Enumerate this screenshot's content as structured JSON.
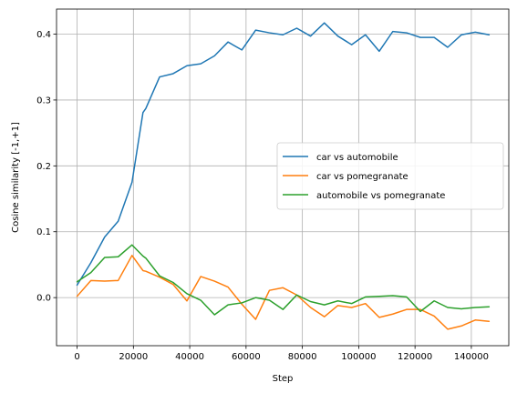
{
  "chart_data": {
    "type": "line",
    "title": "",
    "xlabel": "Step",
    "ylabel": "Cosine similarity [-1,+1]",
    "xlim": [
      -7300,
      153300
    ],
    "ylim": [
      -0.073,
      0.438
    ],
    "xticks": [
      0,
      20000,
      40000,
      60000,
      80000,
      100000,
      120000,
      140000
    ],
    "xtick_labels": [
      "0",
      "20000",
      "40000",
      "60000",
      "80000",
      "100000",
      "120000",
      "140000"
    ],
    "yticks": [
      0.0,
      0.1,
      0.2,
      0.3,
      0.4
    ],
    "ytick_labels": [
      "0.0",
      "0.1",
      "0.2",
      "0.3",
      "0.4"
    ],
    "grid": true,
    "legend_position": "center-right",
    "x": [
      0,
      4900,
      9800,
      14600,
      19500,
      23400,
      24400,
      29300,
      34100,
      39000,
      43900,
      48800,
      53600,
      58500,
      63400,
      68300,
      73100,
      78000,
      82900,
      87800,
      92600,
      97500,
      102400,
      107300,
      112100,
      117000,
      121900,
      126800,
      131600,
      136500,
      141400,
      146300
    ],
    "series": [
      {
        "name": "car vs automobile",
        "color": "#1f77b4",
        "values": [
          0.019,
          0.053,
          0.092,
          0.116,
          0.175,
          0.281,
          0.287,
          0.335,
          0.34,
          0.352,
          0.355,
          0.367,
          0.388,
          0.376,
          0.406,
          0.402,
          0.399,
          0.409,
          0.397,
          0.417,
          0.397,
          0.384,
          0.399,
          0.374,
          0.404,
          0.402,
          0.395,
          0.395,
          0.38,
          0.399,
          0.403,
          0.399
        ]
      },
      {
        "name": "car vs pomegranate",
        "color": "#ff7f0e",
        "values": [
          0.002,
          0.026,
          0.025,
          0.026,
          0.064,
          0.041,
          0.04,
          0.031,
          0.02,
          -0.005,
          0.032,
          0.025,
          0.016,
          -0.01,
          -0.033,
          0.011,
          0.015,
          0.004,
          -0.015,
          -0.029,
          -0.012,
          -0.015,
          -0.009,
          -0.03,
          -0.025,
          -0.018,
          -0.018,
          -0.028,
          -0.048,
          -0.043,
          -0.034,
          -0.036
        ]
      },
      {
        "name": "automobile vs pomegranate",
        "color": "#2ca02c",
        "values": [
          0.024,
          0.038,
          0.061,
          0.062,
          0.08,
          0.063,
          0.06,
          0.033,
          0.023,
          0.006,
          -0.004,
          -0.026,
          -0.011,
          -0.008,
          0.0,
          -0.004,
          -0.018,
          0.004,
          -0.006,
          -0.011,
          -0.005,
          -0.009,
          0.001,
          0.002,
          0.003,
          0.001,
          -0.021,
          -0.005,
          -0.015,
          -0.017,
          -0.015,
          -0.014
        ]
      }
    ]
  }
}
